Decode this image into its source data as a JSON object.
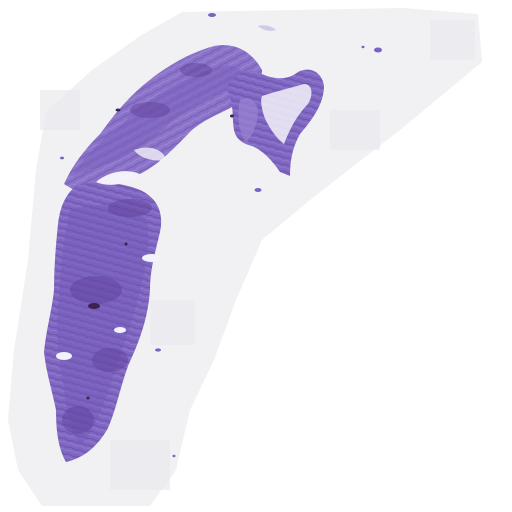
{
  "image": {
    "kind": "whole-slide histology scan thumbnail",
    "stain": "H&E",
    "colors": {
      "background": "#ffffff",
      "scan_region": "#f1f1f3",
      "tile_shade": "#e9e9ee",
      "tissue_light": "#9a86d2",
      "tissue_mid": "#7f68c3",
      "tissue_dark": "#5e3f9a",
      "nucleus_dark": "#3b2250"
    }
  }
}
